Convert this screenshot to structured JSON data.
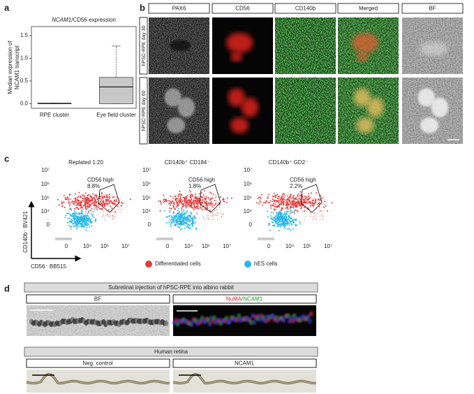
{
  "chart_data": [
    {
      "type": "box",
      "title_gene": "NCAM1",
      "title_rest": "/CD56 expression",
      "y_label": [
        "Median expression of",
        "NCAM1 transcript"
      ],
      "categories": [
        "RPE cluster",
        "Eye field cluster"
      ],
      "values": [
        {
          "min": 0,
          "q1": 0,
          "median": 0.01,
          "q3": 0.01,
          "max": 0.01
        },
        {
          "min": 0,
          "q1": 0,
          "median": 0.37,
          "q3": 0.58,
          "max": 1.27
        }
      ],
      "color": "#c8c8c8",
      "ylim": [
        -0.1,
        1.7
      ],
      "yticks": [
        {
          "value": 0,
          "label": "0.0"
        },
        0.5,
        {
          "value": 1,
          "label": "1.0"
        },
        1.5
      ]
    }
  ],
  "panel_labels": [
    "a",
    "b",
    "c",
    "d"
  ],
  "panel_b": {
    "columns": [
      "PAX6",
      "CD56",
      "CD140b",
      "Merged",
      "BF"
    ],
    "rows": [
      "hPSC-RPE day 30",
      "hPSC-RPE day 60"
    ]
  },
  "panel_c": {
    "plots": [
      {
        "title": "Replated 1:20",
        "gate_label": "CD56 high",
        "gate_value": "8.8%"
      },
      {
        "title": "CD140b⁺ CD184⁻",
        "gate_label": "CD56 high",
        "gate_value": "1.8%"
      },
      {
        "title": "CD140b⁺ GD2⁻",
        "gate_label": "CD56 high",
        "gate_value": "2.2%"
      }
    ],
    "yticks": [
      "10⁷",
      "10⁶",
      "10⁵",
      "10⁴",
      "0"
    ],
    "xticks": [
      "0",
      "10⁴",
      "10⁵",
      "10⁷"
    ],
    "y_label": "CD140b⁻ BV421",
    "x_label": "CD56⁻ BB515",
    "legend": [
      {
        "name": "Differentiated cells",
        "color": "#e83a3a"
      },
      {
        "name": "hES cells",
        "color": "#29b6e6"
      }
    ]
  },
  "panel_d": {
    "header1": "Subretinal injection of hPSC-RPE into albino rabbit",
    "bf_label": "BF",
    "stain_parts": [
      "NuMA",
      "/NCAM1"
    ],
    "header2": "Human retina",
    "neg_label": "Neg. control",
    "ncam_label": "NCAM1"
  }
}
